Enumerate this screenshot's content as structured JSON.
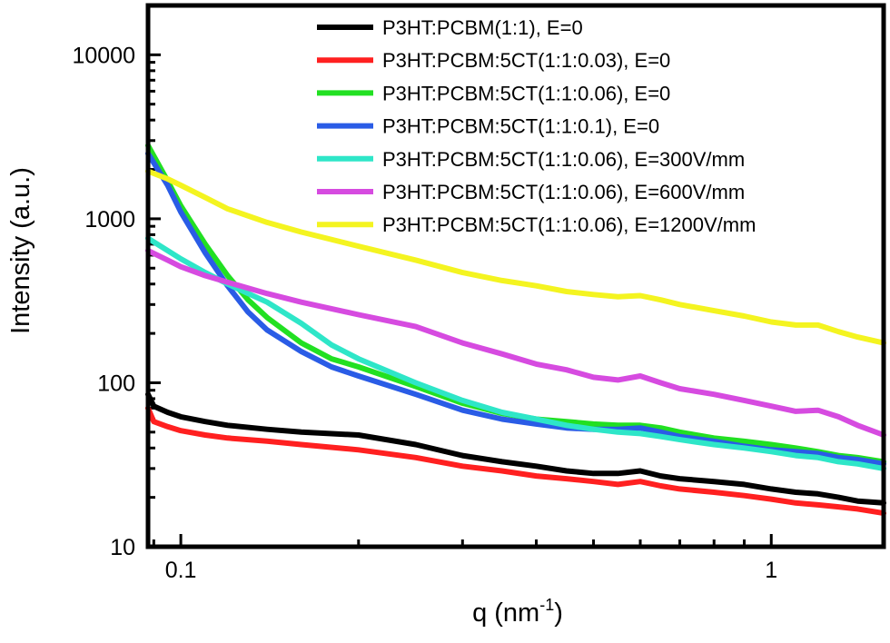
{
  "chart_data": {
    "type": "line",
    "title": "",
    "xlabel": "q (nm",
    "xlabel_sup": "-1",
    "xlabel_close": ")",
    "ylabel": "Intensity (a.u.)",
    "xscale": "log",
    "yscale": "log",
    "xlim": [
      0.088,
      1.55
    ],
    "ylim": [
      10,
      20000
    ],
    "x_ticks": [
      {
        "value": 0.1,
        "label": "0.1"
      },
      {
        "value": 1,
        "label": "1"
      }
    ],
    "y_ticks": [
      {
        "value": 10,
        "label": "10"
      },
      {
        "value": 100,
        "label": "100"
      },
      {
        "value": 1000,
        "label": "1000"
      },
      {
        "value": 10000,
        "label": "10000"
      }
    ],
    "legend_position": "top-right",
    "series": [
      {
        "name": "P3HT:PCBM(1:1), E=0",
        "color": "#000000",
        "x": [
          0.088,
          0.09,
          0.095,
          0.1,
          0.11,
          0.12,
          0.14,
          0.16,
          0.2,
          0.25,
          0.3,
          0.35,
          0.4,
          0.45,
          0.5,
          0.55,
          0.6,
          0.65,
          0.7,
          0.8,
          0.9,
          1.0,
          1.1,
          1.2,
          1.3,
          1.4,
          1.55
        ],
        "y": [
          85,
          72,
          66,
          62,
          58,
          55,
          52,
          50,
          48,
          42,
          36,
          33,
          31,
          29,
          28,
          28,
          29,
          27,
          26,
          25,
          24,
          22.5,
          21.5,
          21,
          20,
          19,
          18.5
        ]
      },
      {
        "name": "P3HT:PCBM:5CT(1:1:0.03), E=0",
        "color": "#ff2020",
        "x": [
          0.088,
          0.09,
          0.095,
          0.1,
          0.11,
          0.12,
          0.14,
          0.16,
          0.2,
          0.25,
          0.3,
          0.35,
          0.4,
          0.45,
          0.5,
          0.55,
          0.6,
          0.65,
          0.7,
          0.8,
          0.9,
          1.0,
          1.1,
          1.2,
          1.3,
          1.4,
          1.55
        ],
        "y": [
          70,
          58,
          54,
          51,
          48,
          46,
          44,
          42,
          39,
          35,
          31,
          29,
          27,
          26,
          25,
          24,
          25,
          23.5,
          22.5,
          21.5,
          20.5,
          19.5,
          18.5,
          18,
          17.5,
          17,
          16
        ]
      },
      {
        "name": "P3HT:PCBM:5CT(1:1:0.06), E=0",
        "color": "#22e022",
        "x": [
          0.088,
          0.095,
          0.1,
          0.11,
          0.12,
          0.13,
          0.14,
          0.16,
          0.18,
          0.2,
          0.25,
          0.3,
          0.35,
          0.4,
          0.45,
          0.5,
          0.55,
          0.6,
          0.65,
          0.7,
          0.8,
          0.9,
          1.0,
          1.1,
          1.2,
          1.3,
          1.4,
          1.55
        ],
        "y": [
          2800,
          1700,
          1200,
          700,
          450,
          320,
          250,
          175,
          140,
          125,
          95,
          75,
          65,
          60,
          58,
          56,
          55,
          55,
          53,
          50,
          46,
          44,
          42,
          40,
          38,
          36,
          35,
          33
        ]
      },
      {
        "name": "P3HT:PCBM:5CT(1:1:0.1), E=0",
        "color": "#2a5ce6",
        "x": [
          0.088,
          0.095,
          0.1,
          0.11,
          0.12,
          0.13,
          0.14,
          0.16,
          0.18,
          0.2,
          0.25,
          0.3,
          0.35,
          0.4,
          0.45,
          0.5,
          0.55,
          0.6,
          0.65,
          0.7,
          0.8,
          0.9,
          1.0,
          1.1,
          1.2,
          1.3,
          1.4,
          1.55
        ],
        "y": [
          2500,
          1600,
          1100,
          620,
          390,
          270,
          210,
          155,
          125,
          110,
          85,
          68,
          60,
          56,
          53,
          52,
          52,
          53,
          50,
          47,
          44,
          41,
          39,
          38,
          37,
          35,
          34,
          32
        ]
      },
      {
        "name": "P3HT:PCBM:5CT(1:1:0.06), E=300V/mm",
        "color": "#2ee6c8",
        "x": [
          0.088,
          0.095,
          0.1,
          0.11,
          0.12,
          0.13,
          0.14,
          0.16,
          0.18,
          0.2,
          0.25,
          0.3,
          0.35,
          0.4,
          0.45,
          0.5,
          0.55,
          0.6,
          0.65,
          0.7,
          0.8,
          0.9,
          1.0,
          1.1,
          1.2,
          1.3,
          1.4,
          1.55
        ],
        "y": [
          760,
          640,
          570,
          470,
          400,
          350,
          310,
          230,
          170,
          140,
          100,
          78,
          66,
          60,
          55,
          52,
          50,
          49,
          47,
          45,
          42,
          40,
          38,
          36,
          35,
          33,
          32,
          30
        ]
      },
      {
        "name": "P3HT:PCBM:5CT(1:1:0.06), E=600V/mm",
        "color": "#d64be0",
        "x": [
          0.088,
          0.095,
          0.1,
          0.11,
          0.12,
          0.14,
          0.16,
          0.2,
          0.25,
          0.3,
          0.35,
          0.4,
          0.45,
          0.5,
          0.55,
          0.6,
          0.65,
          0.7,
          0.8,
          0.9,
          1.0,
          1.1,
          1.2,
          1.3,
          1.4,
          1.55
        ],
        "y": [
          640,
          560,
          510,
          450,
          410,
          350,
          310,
          260,
          220,
          175,
          150,
          130,
          120,
          108,
          104,
          110,
          100,
          92,
          85,
          78,
          72,
          67,
          68,
          62,
          55,
          48
        ]
      },
      {
        "name": "P3HT:PCBM:5CT(1:1:0.06), E=1200V/mm",
        "color": "#f4f420",
        "x": [
          0.088,
          0.095,
          0.1,
          0.11,
          0.12,
          0.14,
          0.16,
          0.2,
          0.25,
          0.3,
          0.35,
          0.4,
          0.45,
          0.5,
          0.55,
          0.6,
          0.65,
          0.7,
          0.8,
          0.9,
          1.0,
          1.1,
          1.2,
          1.3,
          1.4,
          1.55
        ],
        "y": [
          1950,
          1750,
          1600,
          1350,
          1150,
          950,
          830,
          680,
          560,
          470,
          420,
          390,
          360,
          345,
          335,
          340,
          320,
          300,
          275,
          255,
          235,
          225,
          225,
          205,
          190,
          175
        ]
      }
    ]
  }
}
